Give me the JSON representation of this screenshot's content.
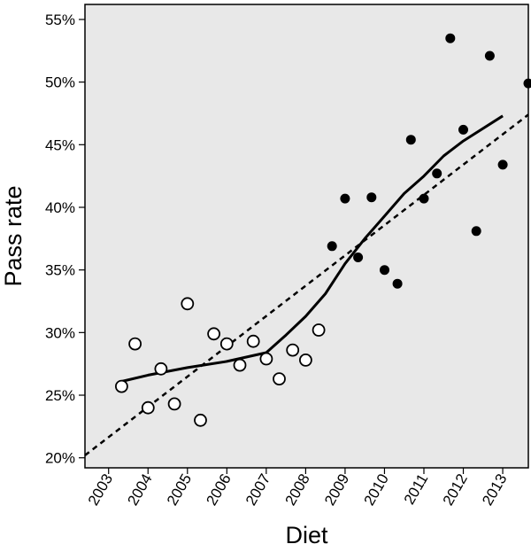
{
  "chart_data": {
    "type": "scatter",
    "title": "",
    "xlabel": "Diet",
    "ylabel": "Pass rate",
    "x_ticks": [
      "2003",
      "2004",
      "2005",
      "2006",
      "2007",
      "2008",
      "2009",
      "2010",
      "2011",
      "2012",
      "2013"
    ],
    "y_ticks": [
      "20%",
      "25%",
      "30%",
      "35%",
      "40%",
      "45%",
      "50%",
      "55%"
    ],
    "xlim": [
      2002.4,
      2013.65
    ],
    "ylim": [
      19.2,
      56.2
    ],
    "grid": false,
    "legend": "none",
    "colors": {
      "plot_background": "#e8e8e8",
      "marker": "#000000",
      "open_marker_fill": "#ffffff",
      "line": "#000000"
    },
    "series": [
      {
        "marker": "open-circle",
        "points": [
          [
            2003.33,
            25.7
          ],
          [
            2003.67,
            29.1
          ],
          [
            2004.0,
            24.0
          ],
          [
            2004.33,
            27.1
          ],
          [
            2004.67,
            24.3
          ],
          [
            2005.0,
            32.3
          ],
          [
            2005.33,
            23.0
          ],
          [
            2005.67,
            29.9
          ],
          [
            2006.0,
            29.1
          ],
          [
            2006.33,
            27.4
          ],
          [
            2006.67,
            29.3
          ],
          [
            2007.0,
            27.9
          ],
          [
            2007.33,
            26.3
          ],
          [
            2007.67,
            28.6
          ],
          [
            2008.0,
            27.8
          ],
          [
            2008.33,
            30.2
          ]
        ]
      },
      {
        "marker": "filled-circle",
        "points": [
          [
            2008.67,
            36.9
          ],
          [
            2009.0,
            40.7
          ],
          [
            2009.33,
            36.0
          ],
          [
            2009.67,
            40.8
          ],
          [
            2010.0,
            35.0
          ],
          [
            2010.33,
            33.9
          ],
          [
            2010.67,
            45.4
          ],
          [
            2011.0,
            40.7
          ],
          [
            2011.33,
            42.7
          ],
          [
            2011.67,
            53.5
          ],
          [
            2012.0,
            46.2
          ],
          [
            2012.33,
            38.1
          ],
          [
            2012.67,
            52.1
          ],
          [
            2013.0,
            43.4
          ],
          [
            2013.65,
            49.9
          ]
        ]
      }
    ],
    "fit_lines": [
      {
        "style": "solid",
        "kind": "loess",
        "points": [
          [
            2003.33,
            26.1
          ],
          [
            2004.0,
            26.6
          ],
          [
            2005.0,
            27.2
          ],
          [
            2006.0,
            27.7
          ],
          [
            2007.0,
            28.4
          ],
          [
            2007.5,
            29.8
          ],
          [
            2008.0,
            31.3
          ],
          [
            2008.5,
            33.1
          ],
          [
            2009.0,
            35.5
          ],
          [
            2009.5,
            37.5
          ],
          [
            2010.0,
            39.3
          ],
          [
            2010.5,
            41.1
          ],
          [
            2011.0,
            42.5
          ],
          [
            2011.5,
            44.1
          ],
          [
            2012.0,
            45.3
          ],
          [
            2013.0,
            47.3
          ]
        ]
      },
      {
        "style": "dashed",
        "kind": "linear",
        "points": [
          [
            2002.4,
            20.2
          ],
          [
            2013.65,
            47.4
          ]
        ]
      }
    ]
  }
}
